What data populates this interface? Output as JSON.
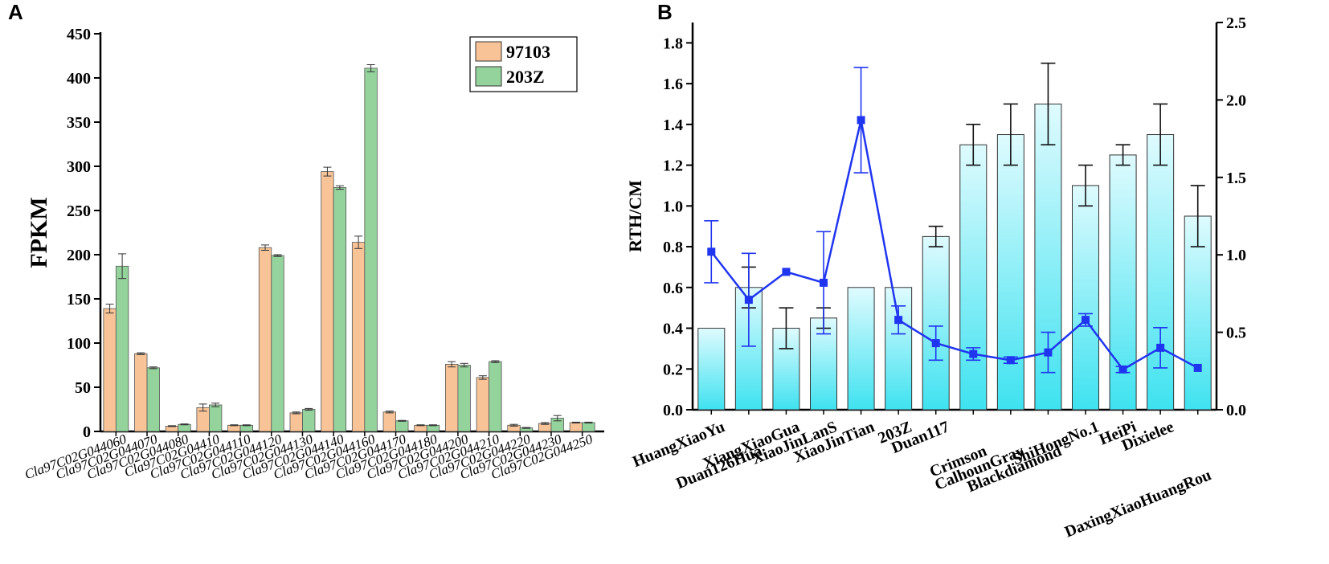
{
  "panels": {
    "a_label": "A",
    "b_label": "B"
  },
  "colors": {
    "orange": "#f8c497",
    "green": "#95d39c",
    "cyan_top": "#dffbfe",
    "cyan_bottom": "#3fe2f0",
    "line": "#1f35f0",
    "errbar_b": "#111111"
  },
  "chart_data": [
    {
      "type": "bar",
      "title": "",
      "xlabel": "",
      "ylabel": "FPKM",
      "ylim": [
        0,
        450
      ],
      "yticks": [
        0,
        50,
        100,
        150,
        200,
        250,
        300,
        350,
        400,
        450
      ],
      "legend_position": "top-right",
      "categories": [
        "Cla97C02G044060",
        "Cla97C02G044070",
        "Cla97C02G044080",
        "Cla97C02G04410",
        "Cla97C02G044110",
        "Cla97C02G044120",
        "Cla97C02G044130",
        "Cla97C02G044140",
        "Cla97C02G044160",
        "Cla97C02G044170",
        "Cla97C02G044180",
        "Cla97C02G044200",
        "Cla97C02G044210",
        "Cla97C02G044220",
        "Cla97C02G044230",
        "Cla97C02G044250"
      ],
      "series": [
        {
          "name": "97103",
          "values": [
            139,
            88,
            6,
            27,
            7,
            208,
            21,
            294,
            214,
            22,
            7,
            76,
            61,
            7,
            9,
            10
          ],
          "errors": [
            5,
            1,
            0.5,
            4,
            0.5,
            3,
            1,
            5,
            7,
            1,
            0.5,
            3,
            2,
            1,
            1,
            0.5
          ]
        },
        {
          "name": "203Z",
          "values": [
            187,
            72,
            8,
            30,
            7,
            199,
            25,
            276,
            411,
            12,
            7,
            75,
            79,
            4,
            15,
            10
          ],
          "errors": [
            14,
            1,
            0.5,
            2,
            0.5,
            1,
            1,
            2,
            4,
            0.5,
            0.5,
            2,
            1,
            0.5,
            3,
            0.5
          ]
        }
      ]
    },
    {
      "type": "bar",
      "title": "",
      "xlabel": "",
      "ylabel": "RTH/CM",
      "ylim": [
        0,
        1.9
      ],
      "yticks": [
        0.0,
        0.2,
        0.4,
        0.6,
        0.8,
        1.0,
        1.2,
        1.4,
        1.6,
        1.8
      ],
      "y2lim": [
        0,
        2.5
      ],
      "y2ticks": [
        0.0,
        0.5,
        1.0,
        1.5,
        2.0,
        2.5
      ],
      "categories": [
        "HuangXiaoYu",
        "Duan126Hua",
        "XiangXiaoGua",
        "XiaoJinLanS",
        "XiaoJinTian",
        "203Z",
        "Duan117",
        "Crimson",
        "CalhounGray",
        "Blackdiamond",
        "ShiHongNo.1",
        "HeiPi",
        "Dixielee",
        "DaxingXiaoHuangRou"
      ],
      "category_label_rows": [
        0,
        1,
        0,
        0,
        0,
        0,
        0,
        1,
        1,
        1,
        0,
        0,
        0,
        2
      ],
      "bars": {
        "values": [
          0.4,
          0.6,
          0.4,
          0.45,
          0.6,
          0.6,
          0.85,
          1.3,
          1.35,
          1.5,
          1.1,
          1.25,
          1.35,
          0.95
        ],
        "errors": [
          0,
          0.1,
          0.1,
          0.05,
          0,
          0,
          0.05,
          0.1,
          0.15,
          0.2,
          0.1,
          0.05,
          0.15,
          0.15
        ]
      },
      "line": {
        "axis": "right",
        "values": [
          1.02,
          0.71,
          0.89,
          0.82,
          1.87,
          0.58,
          0.43,
          0.36,
          0.32,
          0.37,
          0.58,
          0.26,
          0.4,
          0.27
        ],
        "errors": [
          0.2,
          0.3,
          0,
          0.33,
          0.34,
          0.09,
          0.11,
          0.04,
          0.02,
          0.13,
          0.04,
          0.02,
          0.13,
          0
        ]
      }
    }
  ]
}
